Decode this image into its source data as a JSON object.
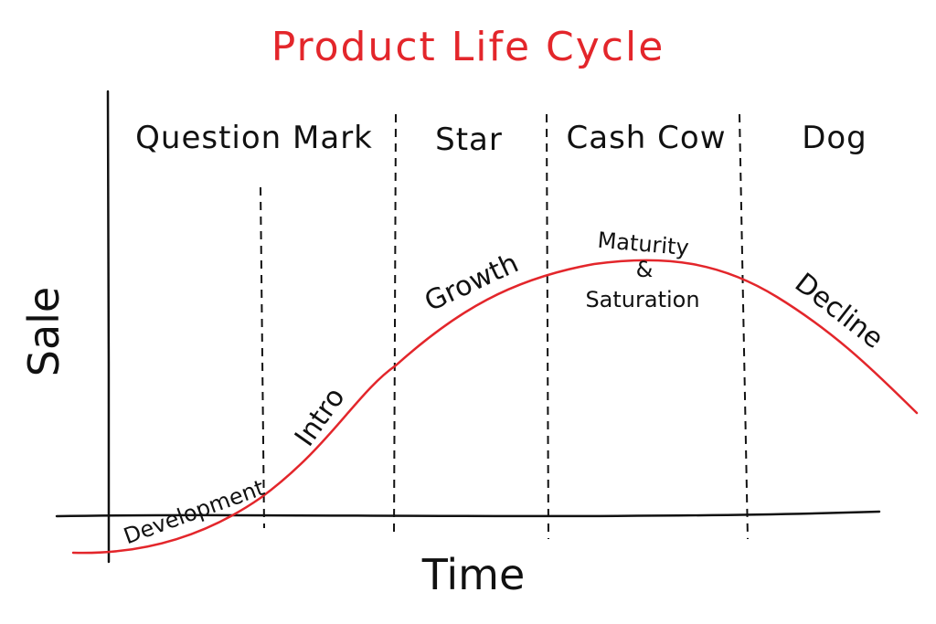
{
  "title": "Product Life Cycle",
  "axes": {
    "y_label": "Sale",
    "x_label": "Time"
  },
  "phases": [
    {
      "label": "Question Mark"
    },
    {
      "label": "Star"
    },
    {
      "label": "Cash Cow"
    },
    {
      "label": "Dog"
    }
  ],
  "stages": {
    "development": "Development",
    "intro": "Intro",
    "growth": "Growth",
    "maturity": "Maturity",
    "ampersand": "&",
    "saturation": "Saturation",
    "decline": "Decline"
  },
  "colors": {
    "accent": "#e3262b",
    "ink": "#111111"
  }
}
